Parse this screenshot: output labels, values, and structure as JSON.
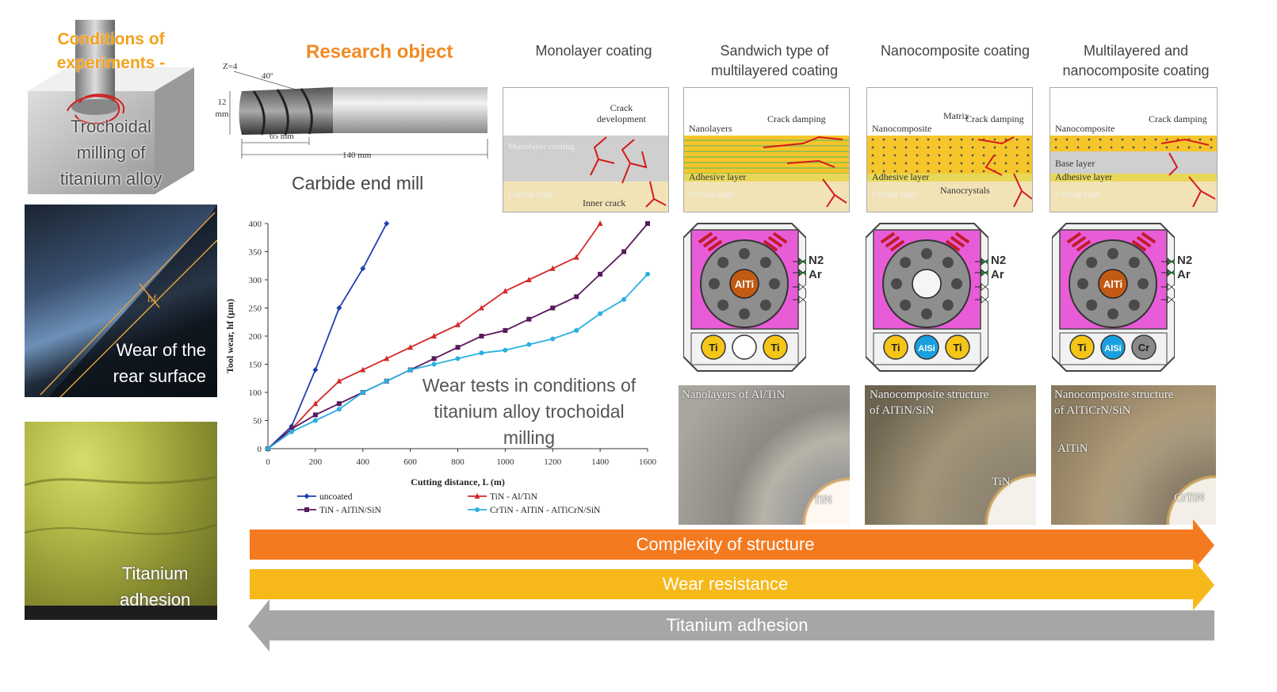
{
  "left": {
    "conditions_title_1": "Conditions of",
    "conditions_title_2": "experiments -",
    "conditions_sub_1": "Trochoidal",
    "conditions_sub_2": "milling of",
    "conditions_sub_3": "titanium alloy",
    "wear_label_1": "Wear of the",
    "wear_label_2": "rear surface",
    "wear_symbol": "hf",
    "ti_label_1": "Titanium",
    "ti_label_2": "adhesion"
  },
  "research": {
    "title": "Research object",
    "tool_label": "Carbide end mill",
    "dim_z": "Z=4",
    "dim_angle": "40º",
    "dim_dia_1": "12",
    "dim_dia_2": "mm",
    "dim_flute": "65 mm",
    "dim_total": "140 mm"
  },
  "coatings": [
    {
      "title_1": "Monolayer coating",
      "title_2": "",
      "labels": {
        "crack_dev_1": "Crack",
        "crack_dev_2": "development",
        "layer": "Monolayer coating",
        "edge": "Cutting edge",
        "inner": "Inner crack"
      }
    },
    {
      "title_1": "Sandwich type of",
      "title_2": "multilayered coating",
      "labels": {
        "nanolayers": "Nanolayers",
        "damping": "Crack damping",
        "adhesive": "Adhesive layer",
        "edge": "Cutting edge"
      }
    },
    {
      "title_1": "Nanocomposite coating",
      "title_2": "",
      "labels": {
        "nanocomposite": "Nanocomposite",
        "matrix": "Matrix",
        "damping": "Crack damping",
        "adhesive": "Adhesive layer",
        "nanocrystals": "Nanocrystals",
        "edge": "Cutting edge"
      }
    },
    {
      "title_1": "Multilayered and",
      "title_2": "nanocomposite coating",
      "labels": {
        "nanocomposite": "Nanocomposite",
        "damping": "Crack damping",
        "base": "Base layer",
        "adhesive": "Adhesive layer",
        "edge": "Cutting edge"
      }
    }
  ],
  "chambers": [
    {
      "center": "AlTi",
      "bottom": [
        "Ti",
        "",
        "Ti"
      ],
      "gas_1": "N2",
      "gas_2": "Ar"
    },
    {
      "center": "",
      "bottom": [
        "Ti",
        "AlSi",
        "Ti"
      ],
      "gas_1": "N2",
      "gas_2": "Ar"
    },
    {
      "center": "AlTi",
      "bottom": [
        "Ti",
        "AlSi",
        "Cr"
      ],
      "gas_1": "N2",
      "gas_2": "Ar"
    }
  ],
  "micrographs": [
    {
      "label_1": "Nanolayers of Al/TiN",
      "label_2": "",
      "inner": "TiN",
      "extra": ""
    },
    {
      "label_1": "Nanocomposite structure",
      "label_2": "of AlTiN/SiN",
      "inner": "TiN",
      "extra": ""
    },
    {
      "label_1": "Nanocomposite structure",
      "label_2": "of AlTiCrN/SiN",
      "inner": "CrTiN",
      "extra": "AlTiN"
    }
  ],
  "chart_overlay": {
    "line_1": "Wear tests in conditions of",
    "line_2": "titanium alloy trochoidal",
    "line_3": "milling"
  },
  "chart_data": {
    "type": "line",
    "xlabel": "Cutting distance, L (m)",
    "ylabel": "Tool wear, hf (µm)",
    "xlim": [
      0,
      1600
    ],
    "ylim": [
      0,
      400
    ],
    "xticks": [
      0,
      200,
      400,
      600,
      800,
      1000,
      1200,
      1400,
      1600
    ],
    "yticks": [
      0,
      50,
      100,
      150,
      200,
      250,
      300,
      350,
      400
    ],
    "grid": false,
    "legend": "bottom",
    "series": [
      {
        "name": "uncoated",
        "color": "#1f3fb0",
        "marker": "diamond",
        "x": [
          0,
          100,
          200,
          300,
          400,
          500
        ],
        "y": [
          0,
          40,
          140,
          250,
          320,
          400
        ]
      },
      {
        "name": "TiN - Al/TiN",
        "color": "#d42a2a",
        "marker": "triangle",
        "x": [
          0,
          100,
          200,
          300,
          400,
          500,
          600,
          700,
          800,
          900,
          1000,
          1100,
          1200,
          1300,
          1400
        ],
        "y": [
          0,
          35,
          80,
          120,
          140,
          160,
          180,
          200,
          220,
          250,
          280,
          300,
          320,
          340,
          400
        ]
      },
      {
        "name": "TiN - AlTiN/SiN",
        "color": "#5a1a5e",
        "marker": "square",
        "x": [
          0,
          100,
          200,
          300,
          400,
          500,
          600,
          700,
          800,
          900,
          1000,
          1100,
          1200,
          1300,
          1400,
          1500,
          1600
        ],
        "y": [
          0,
          35,
          60,
          80,
          100,
          120,
          140,
          160,
          180,
          200,
          210,
          230,
          250,
          270,
          310,
          350,
          400
        ]
      },
      {
        "name": "CrTiN - AlTiN - AlTiCrN/SiN",
        "color": "#2ab0e0",
        "marker": "circle",
        "x": [
          0,
          100,
          200,
          300,
          400,
          500,
          600,
          700,
          800,
          900,
          1000,
          1100,
          1200,
          1300,
          1400,
          1500,
          1600
        ],
        "y": [
          0,
          30,
          50,
          70,
          100,
          120,
          140,
          150,
          160,
          170,
          175,
          185,
          195,
          210,
          240,
          265,
          310
        ]
      }
    ]
  },
  "arrows": {
    "complexity": "Complexity of structure",
    "wear": "Wear resistance",
    "adhesion": "Titanium adhesion",
    "colors": {
      "complexity": "#f47a20",
      "wear": "#f7b81a",
      "adhesion": "#a6a6a6"
    }
  }
}
